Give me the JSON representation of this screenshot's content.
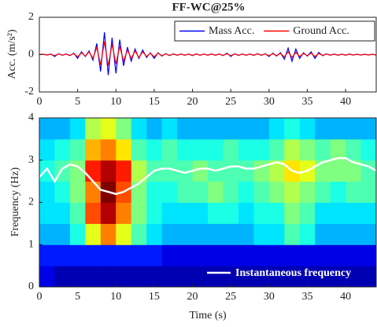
{
  "chart_data": [
    {
      "type": "line",
      "title": "FF-WC@25%",
      "y_label": "Acc. (m/s²)",
      "x": [
        0,
        0.5,
        1,
        1.5,
        2,
        2.5,
        3,
        3.5,
        4,
        4.5,
        5,
        5.5,
        6,
        6.5,
        7,
        7.5,
        8,
        8.5,
        9,
        9.5,
        10,
        10.5,
        11,
        11.5,
        12,
        12.5,
        13,
        13.5,
        14,
        14.5,
        15,
        15.5,
        16,
        16.5,
        17,
        17.5,
        18,
        18.5,
        19,
        19.5,
        20,
        20.5,
        21,
        21.5,
        22,
        22.5,
        23,
        23.5,
        24,
        24.5,
        25,
        25.5,
        26,
        26.5,
        27,
        27.5,
        28,
        28.5,
        29,
        29.5,
        30,
        30.5,
        31,
        31.5,
        32,
        32.5,
        33,
        33.5,
        34,
        34.5,
        35,
        35.5,
        36,
        36.5,
        37,
        37.5,
        38,
        38.5,
        39,
        39.5,
        40,
        40.5,
        41,
        41.5,
        42,
        42.5,
        43,
        43.5,
        44
      ],
      "series": [
        {
          "name": "Mass Acc.",
          "color": "#0000ff",
          "values": [
            0,
            0.02,
            -0.02,
            0.03,
            -0.1,
            0.05,
            -0.03,
            0.03,
            -0.05,
            0.08,
            -0.2,
            0.15,
            -0.1,
            0.2,
            -0.3,
            0.6,
            -0.9,
            1.2,
            -1.1,
            0.9,
            -1.0,
            0.8,
            -0.6,
            0.4,
            -0.35,
            0.3,
            -0.2,
            0.25,
            -0.15,
            0.1,
            -0.2,
            0.1,
            -0.08,
            0.05,
            -0.05,
            0.04,
            -0.03,
            0.03,
            -0.03,
            0.03,
            -0.05,
            0.04,
            -0.03,
            0.03,
            -0.03,
            0.04,
            -0.03,
            0.03,
            -0.05,
            0.08,
            -0.1,
            0.05,
            -0.04,
            0.03,
            -0.03,
            0.03,
            -0.04,
            0.05,
            -0.04,
            0.05,
            -0.1,
            0.08,
            -0.08,
            0.1,
            -0.25,
            0.35,
            -0.35,
            0.3,
            -0.2,
            0.1,
            -0.08,
            0.15,
            -0.2,
            0.12,
            -0.06,
            0.04,
            -0.03,
            0.03,
            -0.03,
            0.02,
            -0.03,
            0.03,
            -0.02,
            0.02,
            -0.02,
            0.02,
            -0.02,
            0.02,
            -0.02
          ]
        },
        {
          "name": "Ground Acc.",
          "color": "#ff0000",
          "values": [
            0,
            0.02,
            -0.02,
            0.02,
            -0.06,
            0.04,
            -0.03,
            0.03,
            -0.04,
            0.06,
            -0.12,
            0.1,
            -0.08,
            0.15,
            -0.2,
            0.4,
            -0.55,
            0.7,
            -0.6,
            0.55,
            -0.5,
            0.45,
            -0.35,
            0.25,
            -0.2,
            0.2,
            -0.15,
            0.15,
            -0.1,
            0.08,
            -0.12,
            0.08,
            -0.06,
            0.04,
            -0.04,
            0.03,
            -0.03,
            0.03,
            -0.03,
            0.03,
            -0.04,
            0.03,
            -0.03,
            0.03,
            -0.03,
            0.03,
            -0.03,
            0.03,
            -0.04,
            0.05,
            -0.06,
            0.04,
            -0.03,
            0.03,
            -0.03,
            0.03,
            -0.03,
            0.04,
            -0.03,
            0.04,
            -0.06,
            0.05,
            -0.05,
            0.06,
            -0.12,
            0.15,
            -0.15,
            0.12,
            -0.1,
            0.06,
            -0.05,
            0.08,
            -0.1,
            0.06,
            -0.04,
            0.03,
            -0.02,
            0.02,
            -0.02,
            0.02,
            -0.02,
            0.02,
            -0.02,
            0.02,
            -0.02,
            0.02,
            -0.02,
            0.02,
            -0.02
          ]
        }
      ],
      "xlim": [
        0,
        44
      ],
      "xticks": [
        0,
        5,
        10,
        15,
        20,
        25,
        30,
        35,
        40
      ],
      "ylim": [
        -2,
        2
      ],
      "yticks": [
        -2,
        0,
        2
      ],
      "legend": "upper right"
    },
    {
      "type": "heatmap",
      "x_label": "Time (s)",
      "y_label": "Frequency (Hz)",
      "colormap": "jet",
      "x_edges": [
        0,
        2,
        4,
        6,
        8,
        10,
        12,
        14,
        16,
        18,
        20,
        22,
        24,
        26,
        28,
        30,
        32,
        34,
        36,
        38,
        40,
        42,
        44
      ],
      "y_edges": [
        0,
        0.5,
        1,
        1.5,
        2,
        2.5,
        3,
        3.5,
        4
      ],
      "z": [
        [
          0.1,
          0.05,
          0.05,
          0.05,
          0.05,
          0.05,
          0.05,
          0.05,
          0.05,
          0.05,
          0.05,
          0.05,
          0.05,
          0.05,
          0.05,
          0.05,
          0.05,
          0.05,
          0.05,
          0.05,
          0.05,
          0.05
        ],
        [
          0.15,
          0.15,
          0.15,
          0.15,
          0.15,
          0.15,
          0.15,
          0.15,
          0.1,
          0.1,
          0.1,
          0.1,
          0.1,
          0.1,
          0.1,
          0.1,
          0.1,
          0.1,
          0.1,
          0.1,
          0.1,
          0.1
        ],
        [
          0.3,
          0.3,
          0.4,
          0.6,
          0.75,
          0.6,
          0.45,
          0.35,
          0.3,
          0.3,
          0.3,
          0.3,
          0.3,
          0.3,
          0.35,
          0.35,
          0.45,
          0.4,
          0.3,
          0.3,
          0.3,
          0.3
        ],
        [
          0.35,
          0.35,
          0.45,
          0.8,
          0.95,
          0.75,
          0.5,
          0.4,
          0.35,
          0.35,
          0.35,
          0.4,
          0.4,
          0.35,
          0.4,
          0.4,
          0.5,
          0.45,
          0.35,
          0.35,
          0.35,
          0.35
        ],
        [
          0.35,
          0.4,
          0.5,
          0.75,
          1.0,
          0.8,
          0.5,
          0.4,
          0.4,
          0.45,
          0.45,
          0.5,
          0.45,
          0.4,
          0.45,
          0.5,
          0.55,
          0.5,
          0.45,
          0.4,
          0.45,
          0.45
        ],
        [
          0.4,
          0.45,
          0.5,
          0.85,
          0.95,
          0.85,
          0.55,
          0.45,
          0.45,
          0.45,
          0.5,
          0.45,
          0.45,
          0.45,
          0.5,
          0.55,
          0.65,
          0.6,
          0.5,
          0.5,
          0.5,
          0.45
        ],
        [
          0.35,
          0.4,
          0.45,
          0.7,
          0.75,
          0.65,
          0.45,
          0.4,
          0.45,
          0.4,
          0.4,
          0.4,
          0.45,
          0.4,
          0.4,
          0.45,
          0.55,
          0.5,
          0.45,
          0.5,
          0.45,
          0.4
        ],
        [
          0.3,
          0.3,
          0.35,
          0.55,
          0.6,
          0.5,
          0.35,
          0.3,
          0.35,
          0.3,
          0.3,
          0.3,
          0.3,
          0.3,
          0.3,
          0.35,
          0.4,
          0.35,
          0.3,
          0.3,
          0.3,
          0.3
        ]
      ],
      "series": [
        {
          "name": "Instantaneous frequency",
          "color": "#ffffff",
          "x": [
            0,
            1,
            2,
            3,
            4,
            5,
            6,
            7,
            8,
            9,
            10,
            11,
            12,
            13,
            14,
            15,
            16,
            17,
            18,
            19,
            20,
            21,
            22,
            23,
            24,
            25,
            26,
            27,
            28,
            29,
            30,
            31,
            32,
            33,
            34,
            35,
            36,
            37,
            38,
            39,
            40,
            41,
            42,
            43,
            44
          ],
          "values": [
            2.6,
            2.8,
            2.5,
            2.8,
            2.9,
            2.85,
            2.7,
            2.5,
            2.3,
            2.25,
            2.2,
            2.25,
            2.35,
            2.45,
            2.6,
            2.75,
            2.8,
            2.8,
            2.75,
            2.7,
            2.75,
            2.8,
            2.8,
            2.75,
            2.8,
            2.85,
            2.85,
            2.8,
            2.8,
            2.85,
            2.9,
            2.95,
            2.9,
            2.75,
            2.7,
            2.75,
            2.85,
            2.95,
            3.0,
            3.05,
            3.05,
            2.95,
            2.9,
            2.85,
            2.75
          ]
        }
      ],
      "xlim": [
        0,
        44
      ],
      "xticks": [
        0,
        5,
        10,
        15,
        20,
        25,
        30,
        35,
        40
      ],
      "ylim": [
        0,
        4
      ],
      "yticks": [
        0,
        1,
        2,
        3,
        4
      ],
      "legend": "lower right"
    }
  ]
}
